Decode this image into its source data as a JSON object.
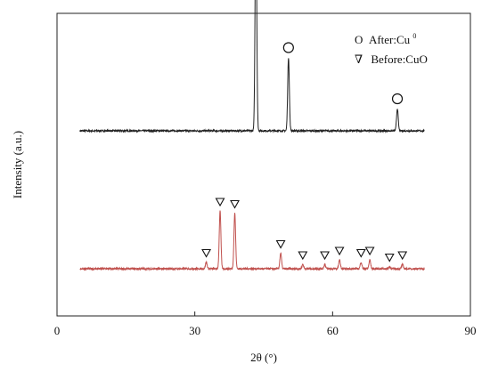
{
  "chart_data": {
    "type": "line",
    "title": "",
    "xlabel": "2θ (°)",
    "ylabel": "Intensity (a.u.)",
    "xlim": [
      0,
      90
    ],
    "xticks": [
      0,
      30,
      60,
      90
    ],
    "yticks_visible": false,
    "grid": false,
    "legend": {
      "placement": "top-right",
      "entries": [
        {
          "symbol": "O",
          "text": "After:Cu",
          "superscript": "0"
        },
        {
          "symbol": "∇",
          "text": "Before:CuO",
          "superscript": ""
        }
      ]
    },
    "series": [
      {
        "name": "After:Cu0",
        "color": "#222222",
        "baseline": 0.62,
        "x_range": [
          5,
          80
        ],
        "peaks": [
          {
            "x": 43.3,
            "height": 1.0
          },
          {
            "x": 50.4,
            "height": 0.33
          },
          {
            "x": 74.1,
            "height": 0.1
          }
        ],
        "markers": [
          {
            "x": 43.3,
            "shape": "circle"
          },
          {
            "x": 50.4,
            "shape": "circle"
          },
          {
            "x": 74.1,
            "shape": "circle"
          }
        ]
      },
      {
        "name": "Before:CuO",
        "color": "#c0504d",
        "baseline": 0.0,
        "x_range": [
          5,
          80
        ],
        "peaks": [
          {
            "x": 32.5,
            "height": 0.03
          },
          {
            "x": 35.5,
            "height": 0.26
          },
          {
            "x": 38.7,
            "height": 0.25
          },
          {
            "x": 48.7,
            "height": 0.07
          },
          {
            "x": 53.5,
            "height": 0.02
          },
          {
            "x": 58.3,
            "height": 0.02
          },
          {
            "x": 61.5,
            "height": 0.04
          },
          {
            "x": 66.2,
            "height": 0.03
          },
          {
            "x": 68.1,
            "height": 0.04
          },
          {
            "x": 72.4,
            "height": 0.01
          },
          {
            "x": 75.2,
            "height": 0.02
          }
        ],
        "markers": [
          {
            "x": 32.5,
            "shape": "triangle-down"
          },
          {
            "x": 35.5,
            "shape": "triangle-down"
          },
          {
            "x": 38.7,
            "shape": "triangle-down"
          },
          {
            "x": 48.7,
            "shape": "triangle-down"
          },
          {
            "x": 53.5,
            "shape": "triangle-down"
          },
          {
            "x": 58.3,
            "shape": "triangle-down"
          },
          {
            "x": 61.5,
            "shape": "triangle-down"
          },
          {
            "x": 66.2,
            "shape": "triangle-down"
          },
          {
            "x": 68.1,
            "shape": "triangle-down"
          },
          {
            "x": 72.4,
            "shape": "triangle-down"
          },
          {
            "x": 75.2,
            "shape": "triangle-down"
          }
        ]
      }
    ]
  }
}
